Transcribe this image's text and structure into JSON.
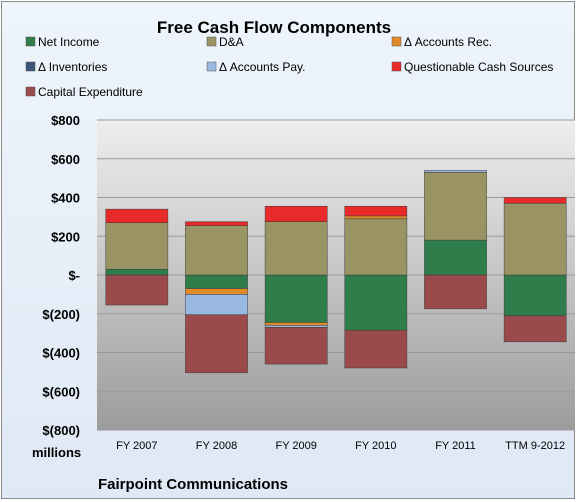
{
  "chart_data": {
    "type": "bar",
    "stacked": true,
    "title": "Free Cash Flow Components",
    "units_label": "millions",
    "footer": "Fairpoint Communications",
    "categories": [
      "FY 2007",
      "FY 2008",
      "FY 2009",
      "FY 2010",
      "FY 2011",
      "TTM 9-2012"
    ],
    "ylim": [
      -800,
      800
    ],
    "yticks": [
      800,
      600,
      400,
      200,
      0,
      -200,
      -400,
      -600,
      -800
    ],
    "ytick_labels": [
      "$800",
      "$600",
      "$400",
      "$200",
      "$-",
      "$(200)",
      "$(400)",
      "$(600)",
      "$(800)"
    ],
    "grid": true,
    "legend_position": "top",
    "series": [
      {
        "name": "Net Income",
        "color": "#2e7d4a",
        "values": [
          30,
          -70,
          -245,
          -285,
          180,
          -210
        ]
      },
      {
        "name": "D&A",
        "color": "#9a9464",
        "values": [
          240,
          255,
          275,
          290,
          350,
          370
        ]
      },
      {
        "name": "Δ Accounts Rec.",
        "color": "#e08a2a",
        "values": [
          0,
          -30,
          -15,
          15,
          0,
          0
        ]
      },
      {
        "name": "Δ Inventories",
        "color": "#3a5678",
        "values": [
          0,
          0,
          0,
          0,
          0,
          0
        ]
      },
      {
        "name": "Δ Accounts Pay.",
        "color": "#9ab9e0",
        "values": [
          0,
          -105,
          -10,
          0,
          10,
          0
        ]
      },
      {
        "name": "Questionable Cash Sources",
        "color": "#e82a2a",
        "values": [
          70,
          20,
          80,
          50,
          0,
          30
        ]
      },
      {
        "name": "Capital Expenditure",
        "color": "#9a4a4a",
        "values": [
          -155,
          -300,
          -190,
          -195,
          -175,
          -135
        ]
      }
    ]
  }
}
